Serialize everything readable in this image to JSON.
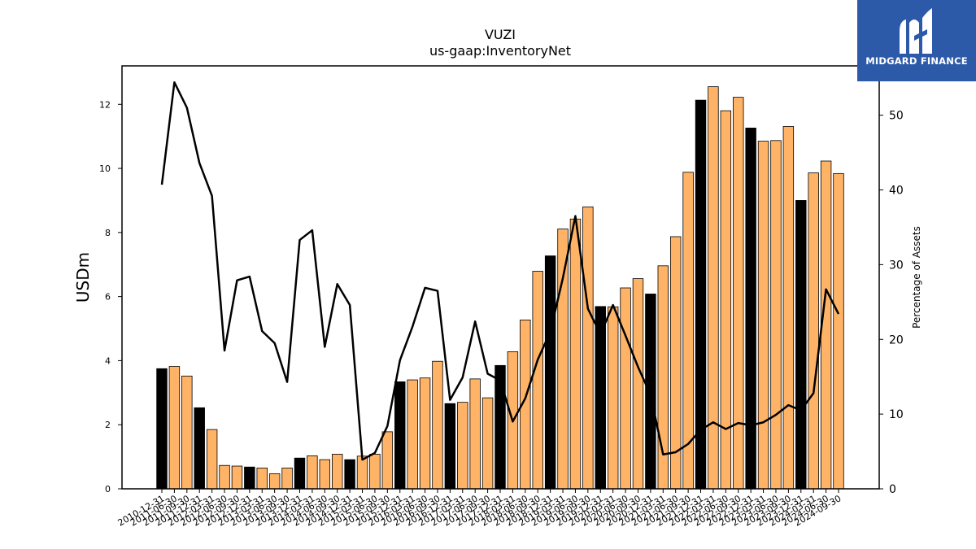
{
  "brand": {
    "logo_icon": "mf-monogram-icon",
    "name": "MIDGARD FINANCE",
    "bg_color": "#2d5aa8"
  },
  "chart_data": {
    "type": "bar",
    "title": "VUZI",
    "subtitle": "us-gaap:InventoryNet",
    "ylabel": "USDm",
    "y2label": "Percentage of Assets",
    "ylim": [
      0,
      13.2
    ],
    "y2lim": [
      0,
      56.6
    ],
    "yticks": [
      0,
      2,
      4,
      6,
      8,
      10,
      12
    ],
    "y2ticks": [
      0,
      10,
      20,
      30,
      40,
      50
    ],
    "colors": {
      "annual_bar": "#000000",
      "quarterly_bar": "#ffb366",
      "line": "#000000"
    },
    "categories": [
      "2010-12-31",
      "2011-06-30",
      "2011-09-30",
      "2011-12-31",
      "2012-03-31",
      "2012-06-30",
      "2012-09-30",
      "2012-12-31",
      "2013-03-31",
      "2013-06-30",
      "2013-09-30",
      "2013-12-31",
      "2014-03-31",
      "2014-06-30",
      "2014-09-30",
      "2014-12-31",
      "2015-03-31",
      "2015-06-30",
      "2015-09-30",
      "2015-12-31",
      "2016-03-31",
      "2016-06-30",
      "2016-09-30",
      "2016-12-31",
      "2017-03-31",
      "2017-06-30",
      "2017-09-30",
      "2017-12-31",
      "2018-03-31",
      "2018-06-30",
      "2018-09-30",
      "2018-12-31",
      "2019-03-31",
      "2019-06-30",
      "2019-09-30",
      "2019-12-31",
      "2020-03-31",
      "2020-06-30",
      "2020-09-30",
      "2020-12-31",
      "2021-03-31",
      "2021-06-30",
      "2021-09-30",
      "2021-12-31",
      "2022-03-31",
      "2022-06-30",
      "2022-09-30",
      "2022-12-31",
      "2023-03-31",
      "2023-06-30",
      "2023-09-30",
      "2023-12-31",
      "2024-03-31",
      "2024-06-30",
      "2024-09-30"
    ],
    "series": [
      {
        "kind": "bar",
        "axis": "left",
        "values": [
          3.75,
          3.82,
          3.52,
          2.53,
          1.85,
          0.73,
          0.71,
          0.68,
          0.65,
          0.47,
          0.65,
          0.96,
          1.03,
          0.91,
          1.08,
          0.91,
          1.02,
          1.08,
          1.78,
          3.34,
          3.4,
          3.46,
          3.98,
          2.66,
          2.7,
          3.43,
          2.84,
          3.85,
          4.28,
          5.27,
          6.79,
          7.27,
          8.11,
          8.42,
          8.8,
          5.69,
          5.68,
          6.27,
          6.56,
          6.08,
          6.96,
          7.87,
          9.88,
          12.13,
          12.55,
          11.8,
          12.22,
          11.26,
          10.85,
          10.87,
          11.31,
          9.0,
          9.86,
          10.23,
          9.84
        ],
        "annual": [
          true,
          false,
          false,
          true,
          false,
          false,
          false,
          true,
          false,
          false,
          false,
          true,
          false,
          false,
          false,
          true,
          false,
          false,
          false,
          true,
          false,
          false,
          false,
          true,
          false,
          false,
          false,
          true,
          false,
          false,
          false,
          true,
          false,
          false,
          false,
          true,
          false,
          false,
          false,
          true,
          false,
          false,
          false,
          true,
          false,
          false,
          false,
          true,
          false,
          false,
          false,
          true,
          false,
          false,
          false
        ]
      },
      {
        "kind": "line",
        "axis": "right",
        "values": [
          40.7,
          54.4,
          51.0,
          43.6,
          39.2,
          18.5,
          27.9,
          28.4,
          21.1,
          19.5,
          14.3,
          33.3,
          34.6,
          19.0,
          27.4,
          24.6,
          3.9,
          4.8,
          8.4,
          17.2,
          21.7,
          26.9,
          26.5,
          11.9,
          14.9,
          22.4,
          15.4,
          14.5,
          9.0,
          12.1,
          17.3,
          21.0,
          28.2,
          36.5,
          24.1,
          20.7,
          24.6,
          20.5,
          16.3,
          12.6,
          4.6,
          4.9,
          6.0,
          7.9,
          8.9,
          8.0,
          8.8,
          8.5,
          8.9,
          9.9,
          11.2,
          10.5,
          12.8,
          26.7,
          23.4
        ]
      }
    ]
  }
}
